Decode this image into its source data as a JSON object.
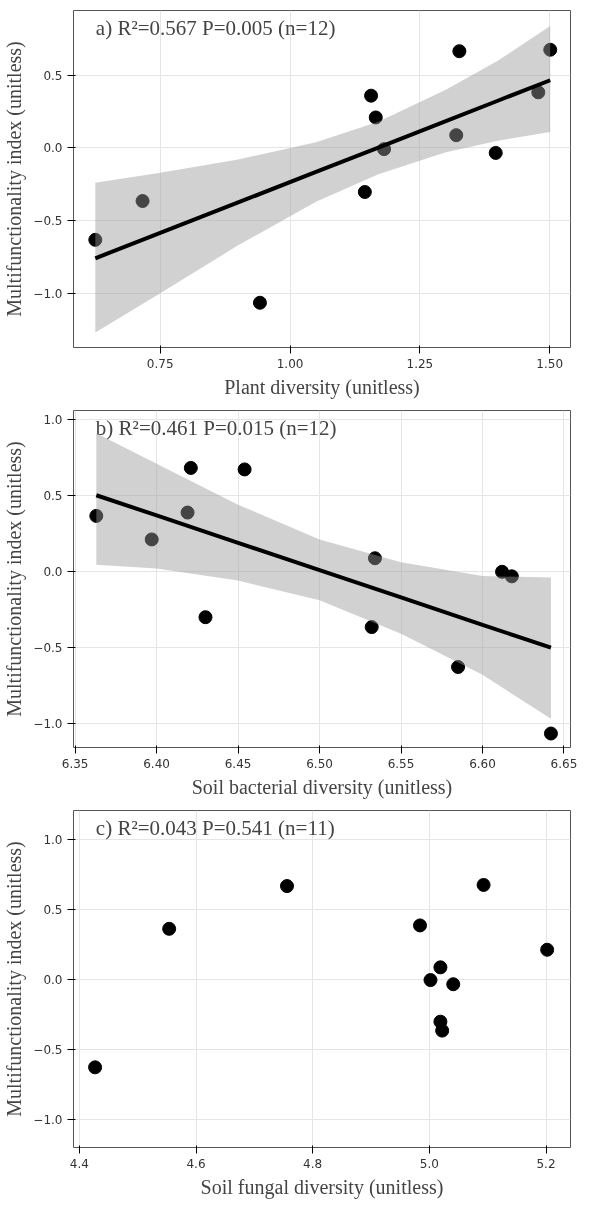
{
  "chart_data": [
    {
      "type": "scatter",
      "title": "a) R²=0.567  P=0.005 (n=12)",
      "xlabel": "Plant diversity (unitless)",
      "ylabel": "Multifunctionality index (unitless)",
      "xlim": [
        0.583,
        1.54
      ],
      "ylim": [
        -1.373,
        0.946
      ],
      "xticks": [
        {
          "value": 0.75,
          "label": "0.75"
        },
        {
          "value": 1.0,
          "label": "1.00"
        },
        {
          "value": 1.25,
          "label": "1.25"
        },
        {
          "value": 1.5,
          "label": "1.50"
        }
      ],
      "yticks": [
        {
          "value": -1.0,
          "label": "−1.0"
        },
        {
          "value": -0.5,
          "label": "−0.5"
        },
        {
          "value": 0.0,
          "label": "0.0"
        },
        {
          "value": 0.5,
          "label": "0.5"
        }
      ],
      "grid": true,
      "series": [
        {
          "color": "#000000",
          "marker": "circle",
          "x": [
            0.625,
            0.716,
            0.942,
            1.144,
            1.156,
            1.165,
            1.181,
            1.32,
            1.326,
            1.396,
            1.478,
            1.501
          ],
          "values": [
            -0.632,
            -0.365,
            -1.065,
            -0.303,
            0.36,
            0.21,
            -0.008,
            0.088,
            0.666,
            -0.034,
            0.383,
            0.676
          ]
        },
        {
          "type": "line",
          "color": "#000000",
          "marker": "none",
          "x": [
            0.625,
            0.75,
            0.9,
            1.05,
            1.17,
            1.3,
            1.4,
            1.501
          ],
          "values": [
            -0.759,
            -0.584,
            -0.375,
            -0.165,
            0.003,
            0.185,
            0.325,
            0.466
          ],
          "lower": [
            -1.27,
            -1.0,
            -0.67,
            -0.37,
            -0.18,
            -0.03,
            0.05,
            0.11
          ],
          "upper": [
            -0.24,
            -0.17,
            -0.08,
            0.04,
            0.18,
            0.4,
            0.6,
            0.84
          ]
        }
      ]
    },
    {
      "type": "scatter",
      "title": "b) R²=0.461  P=0.015 (n=12)",
      "xlabel": "Soil bacterial diversity (unitless)",
      "ylabel": "Multifunctionality index (unitless)",
      "xlim": [
        6.349,
        6.654
      ],
      "ylim": [
        -1.159,
        1.06
      ],
      "xticks": [
        6.35,
        {
          "value": 6.4,
          "label": "6.40"
        },
        6.45,
        {
          "value": 6.5,
          "label": "6.50"
        },
        6.55,
        {
          "value": 6.6,
          "label": "6.60"
        },
        6.65
      ],
      "yticks": [
        {
          "value": -1.0,
          "label": "−1.0"
        },
        {
          "value": -0.5,
          "label": "−0.5"
        },
        {
          "value": 0.0,
          "label": "0.0"
        },
        {
          "value": 0.5,
          "label": "0.5"
        },
        {
          "value": 1.0,
          "label": "1.0"
        }
      ],
      "grid": true,
      "series": [
        {
          "color": "#000000",
          "marker": "circle",
          "x": [
            6.363,
            6.397,
            6.419,
            6.421,
            6.43,
            6.454,
            6.532,
            6.534,
            6.585,
            6.612,
            6.618,
            6.642
          ],
          "values": [
            0.366,
            0.211,
            0.388,
            0.682,
            -0.301,
            0.672,
            -0.366,
            0.087,
            -0.629,
            -0.002,
            -0.032,
            -1.067
          ]
        },
        {
          "type": "line",
          "color": "#000000",
          "marker": "none",
          "x": [
            6.363,
            6.4,
            6.45,
            6.5,
            6.55,
            6.6,
            6.642
          ],
          "values": [
            0.502,
            0.369,
            0.189,
            0.009,
            -0.171,
            -0.351,
            -0.502
          ],
          "lower": [
            0.045,
            0.02,
            -0.06,
            -0.19,
            -0.41,
            -0.68,
            -0.97
          ],
          "upper": [
            0.91,
            0.71,
            0.44,
            0.21,
            0.06,
            -0.03,
            -0.04
          ]
        }
      ]
    },
    {
      "type": "scatter",
      "title": "c) R²=0.043  P=0.541 (n=11)",
      "xlabel": "Soil fungal diversity (unitless)",
      "ylabel": "Multifunctionality index (unitless)",
      "xlim": [
        4.39,
        5.242
      ],
      "ylim": [
        -1.204,
        1.209
      ],
      "xticks": [
        4.4,
        4.6,
        4.8,
        {
          "value": 5.0,
          "label": "5.0"
        },
        5.2
      ],
      "yticks": [
        {
          "value": -1.0,
          "label": "−1.0"
        },
        {
          "value": -0.5,
          "label": "−0.5"
        },
        {
          "value": 0.0,
          "label": "0.0"
        },
        {
          "value": 0.5,
          "label": "0.5"
        },
        {
          "value": 1.0,
          "label": "1.0"
        }
      ],
      "grid": true,
      "series": [
        {
          "color": "#000000",
          "marker": "circle",
          "x": [
            4.427,
            4.554,
            4.756,
            4.984,
            5.002,
            5.019,
            5.019,
            5.022,
            5.041,
            5.093,
            5.202
          ],
          "values": [
            -0.63,
            0.362,
            0.668,
            0.386,
            -0.005,
            0.086,
            -0.303,
            -0.367,
            -0.035,
            0.676,
            0.212
          ]
        }
      ]
    }
  ]
}
